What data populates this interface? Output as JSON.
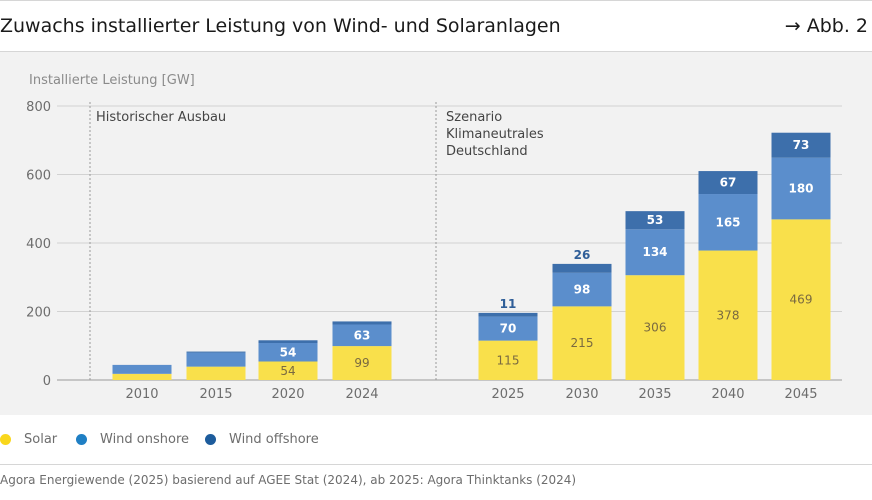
{
  "header": {
    "title": "Zuwachs installierter Leistung von Wind- und Solaranlagen",
    "figure_ref": "→ Abb. 2"
  },
  "footer": {
    "source": "Agora Energiewende (2025) basierend auf AGEE Stat (2024), ab 2025: Agora Thinktanks (2024)"
  },
  "colors": {
    "solar": "#f9e04b",
    "wind_onshore": "#5b8ecc",
    "wind_offshore": "#3d6fab",
    "legend_solar": "#f9d71c",
    "legend_onshore": "#1f7fc4",
    "legend_offshore": "#1d5c9c"
  },
  "chart_data": {
    "type": "bar",
    "stacked": true,
    "ylabel": "Installierte Leistung [GW]",
    "ylim": [
      0,
      800
    ],
    "yticks": [
      0,
      200,
      400,
      600,
      800
    ],
    "grid": true,
    "legend_position": "bottom-left",
    "categories": [
      "2010",
      "2015",
      "2020",
      "2024",
      "2025",
      "2030",
      "2035",
      "2040",
      "2045"
    ],
    "series": [
      {
        "name": "Solar",
        "values": [
          18,
          39,
          54,
          99,
          115,
          215,
          306,
          378,
          469
        ]
      },
      {
        "name": "Wind onshore",
        "values": [
          26,
          41,
          54,
          63,
          70,
          98,
          134,
          165,
          180
        ]
      },
      {
        "name": "Wind offshore",
        "values": [
          0.1,
          3,
          8,
          9,
          11,
          26,
          53,
          67,
          73
        ]
      }
    ],
    "data_labels": {
      "Solar": [
        "",
        "",
        "54",
        "99",
        "115",
        "215",
        "306",
        "378",
        "469"
      ],
      "Wind onshore": [
        "",
        "",
        "54",
        "63",
        "70",
        "98",
        "134",
        "165",
        "180"
      ],
      "Wind offshore": [
        "",
        "",
        "",
        "",
        "11",
        "26",
        "53",
        "67",
        "73"
      ]
    },
    "annotations": [
      {
        "id": "historic",
        "lines": [
          "Historischer Ausbau"
        ]
      },
      {
        "id": "scenario",
        "lines": [
          "Szenario",
          "Klimaneutrales",
          "Deutschland"
        ]
      }
    ]
  }
}
